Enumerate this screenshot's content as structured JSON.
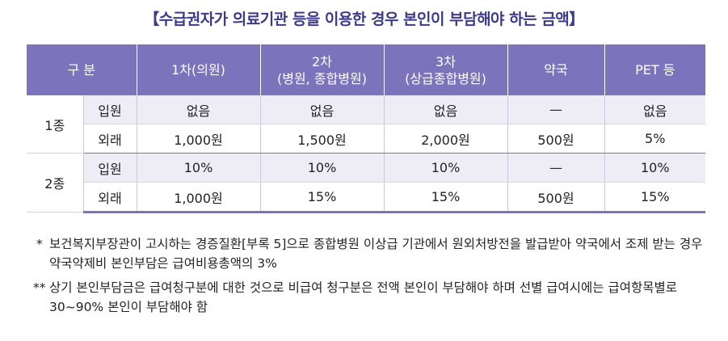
{
  "title": "【수급권자가 의료기관 등을 이용한 경우 본인이 부담해야 하는 금액】",
  "table": {
    "headers": [
      "구 분",
      "1차(의원)",
      "2차",
      "(병원, 종합병원)",
      "3차",
      "(상급종합병원)",
      "약국",
      "PET 등"
    ],
    "groups": [
      {
        "label": "1종",
        "rows": [
          {
            "type": "입원",
            "values": [
              "없음",
              "없음",
              "없음",
              "—",
              "없음"
            ]
          },
          {
            "type": "외래",
            "values": [
              "1,000원",
              "1,500원",
              "2,000원",
              "500원",
              "5%"
            ]
          }
        ]
      },
      {
        "label": "2종",
        "rows": [
          {
            "type": "입원",
            "values": [
              "10%",
              "10%",
              "10%",
              "—",
              "10%"
            ]
          },
          {
            "type": "외래",
            "values": [
              "1,000원",
              "15%",
              "15%",
              "500원",
              "15%"
            ]
          }
        ]
      }
    ]
  },
  "notes": [
    {
      "mark": "*",
      "text": "보건복지부장관이 고시하는 경증질환[부록 5]으로 종합병원 이상급 기관에서 원외처방전을 발급받아 약국에서 조제 받는 경우 약국약제비 본인부담은 급여비용총액의 3%"
    },
    {
      "mark": "**",
      "text": "상기 본인부담금은 급여청구분에 대한 것으로 비급여 청구분은 전액 본인이 부담해야 하며 선별 급여시에는 급여항목별로 30~90% 본인이 부담해야 함"
    }
  ]
}
